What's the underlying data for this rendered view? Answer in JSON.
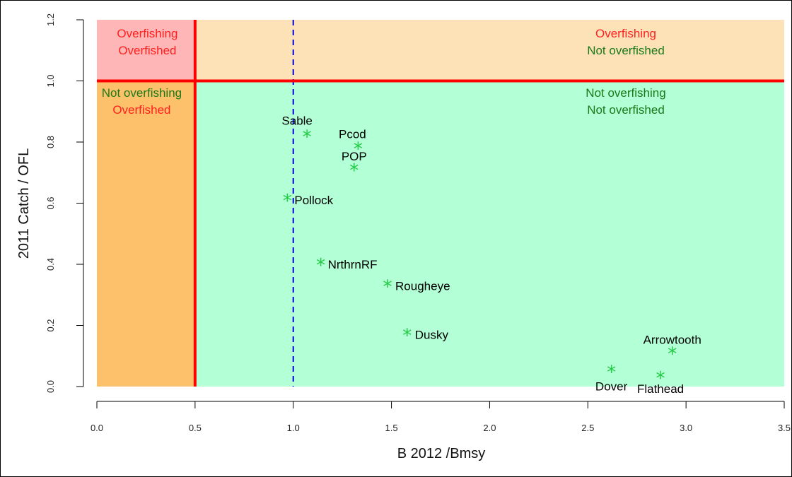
{
  "chart_data": {
    "type": "scatter",
    "xlabel": "B 2012 /Bmsy",
    "ylabel": "2011 Catch / OFL",
    "xlim": [
      0,
      3.5
    ],
    "ylim": [
      0,
      1.2
    ],
    "x_ticks": [
      "0.0",
      "0.5",
      "1.0",
      "1.5",
      "2.0",
      "2.5",
      "3.0",
      "3.5"
    ],
    "y_ticks": [
      "0.0",
      "0.2",
      "0.4",
      "0.6",
      "0.8",
      "1.0",
      "1.2"
    ],
    "grid": false,
    "marker": "*",
    "marker_color": "#22cc44",
    "reference_lines": {
      "x_solid": 0.5,
      "y_solid": 1.0,
      "solid_color": "#ff0000",
      "x_dashed": 1.0,
      "dashed_color": "#0000dd"
    },
    "regions": [
      {
        "name": "overfishing-overfished",
        "color": "#ffb6b6",
        "labels": [
          "Overfishing",
          "Overfished"
        ],
        "label_colors": [
          "#ff2020",
          "#ff2020"
        ]
      },
      {
        "name": "overfishing-not-overfished",
        "color": "#fde2b8",
        "labels": [
          "Overfishing",
          "Not overfished"
        ],
        "label_colors": [
          "#ff2020",
          "#1a7a1a"
        ]
      },
      {
        "name": "not-overfishing-overfished",
        "color": "#fcc16a",
        "labels": [
          "Not overfishing",
          "Overfished"
        ],
        "label_colors": [
          "#1a7a1a",
          "#ff2020"
        ]
      },
      {
        "name": "not-overfishing-not-overfished",
        "color": "#b3ffd6",
        "labels": [
          "Not overfishing",
          "Not overfished"
        ],
        "label_colors": [
          "#1a7a1a",
          "#1a7a1a"
        ]
      }
    ],
    "points": [
      {
        "label": "Sable",
        "x": 1.07,
        "y": 0.82
      },
      {
        "label": "Pcod",
        "x": 1.33,
        "y": 0.78
      },
      {
        "label": "POP",
        "x": 1.31,
        "y": 0.71
      },
      {
        "label": "Pollock",
        "x": 0.97,
        "y": 0.61
      },
      {
        "label": "NrthrnRF",
        "x": 1.14,
        "y": 0.4
      },
      {
        "label": "Rougheye",
        "x": 1.48,
        "y": 0.33
      },
      {
        "label": "Dusky",
        "x": 1.58,
        "y": 0.17
      },
      {
        "label": "Arrowtooth",
        "x": 2.93,
        "y": 0.11
      },
      {
        "label": "Dover",
        "x": 2.62,
        "y": 0.05
      },
      {
        "label": "Flathead",
        "x": 2.87,
        "y": 0.03
      }
    ]
  }
}
